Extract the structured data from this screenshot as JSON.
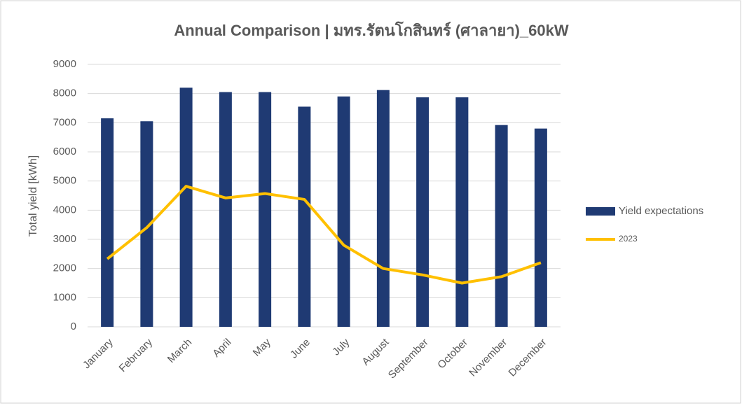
{
  "chart_data": {
    "type": "bar",
    "title": "Annual Comparison | มทร.รัตนโกสินทร์ (ศาลายา)_60kW",
    "y_label": "Total yield [kWh]",
    "categories": [
      "January",
      "February",
      "March",
      "April",
      "May",
      "June",
      "July",
      "August",
      "September",
      "October",
      "November",
      "December"
    ],
    "series": [
      {
        "name": "Yield expectations",
        "type": "bar",
        "color": "#1f3a73",
        "values": [
          7150,
          7050,
          8200,
          8050,
          8050,
          7550,
          7900,
          8120,
          7870,
          7870,
          6920,
          6800
        ]
      },
      {
        "name": "2023",
        "type": "line",
        "color": "#ffc000",
        "values": [
          2330,
          3400,
          4820,
          4420,
          4570,
          4370,
          2800,
          2000,
          1780,
          1500,
          1720,
          2200
        ]
      }
    ],
    "ylim": [
      0,
      9000
    ],
    "yticks": [
      0,
      1000,
      2000,
      3000,
      4000,
      5000,
      6000,
      7000,
      8000,
      9000
    ],
    "grid": true,
    "legend": "right"
  }
}
